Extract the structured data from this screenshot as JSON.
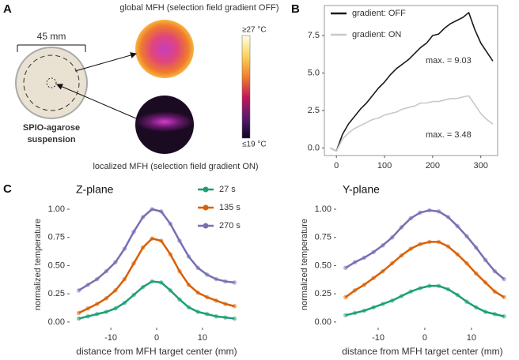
{
  "panel_labels": [
    "A",
    "B",
    "C"
  ],
  "panel_a": {
    "scale_label": "45 mm",
    "sample_label": [
      "SPIO-agarose",
      "suspension"
    ],
    "top_image_caption": "global MFH (selection field gradient OFF)",
    "bottom_image_caption": "localized MFH (selection field gradient ON)",
    "colorbar_max_label": "≥27 °C",
    "colorbar_min_label": "≤19 °C"
  },
  "chart_data": [
    {
      "type": "line",
      "frame": true,
      "legend": "top-left",
      "x": [
        -12.5,
        0,
        12.5,
        25,
        37.5,
        50,
        62.5,
        75,
        87.5,
        100,
        112.5,
        125,
        137.5,
        150,
        162.5,
        175,
        187.5,
        200,
        212.5,
        225,
        237.5,
        250,
        262.5,
        275,
        287.5,
        300,
        312.5,
        325
      ],
      "series": [
        {
          "name": "gradient: OFF",
          "color": "#1a1a1a",
          "values": [
            0,
            -0.2,
            0.9,
            1.6,
            2.1,
            2.6,
            3.0,
            3.5,
            4.0,
            4.4,
            4.9,
            5.3,
            5.6,
            5.9,
            6.3,
            6.7,
            7.0,
            7.5,
            7.6,
            8.0,
            8.3,
            8.5,
            8.7,
            9.03,
            7.9,
            7.0,
            6.4,
            5.8
          ]
        },
        {
          "name": "gradient: ON",
          "color": "#c8c8c8",
          "values": [
            0,
            -0.2,
            0.6,
            1.0,
            1.3,
            1.5,
            1.7,
            1.9,
            2.0,
            2.2,
            2.3,
            2.4,
            2.6,
            2.7,
            2.8,
            3.0,
            3.0,
            3.1,
            3.1,
            3.2,
            3.3,
            3.3,
            3.4,
            3.48,
            2.9,
            2.3,
            1.9,
            1.6
          ]
        }
      ],
      "annotations": [
        "max. = 9.03",
        "max. = 3.48"
      ],
      "xlim": [
        -25,
        335
      ],
      "ylim": [
        -0.5,
        9.5
      ],
      "xticks": [
        0,
        100,
        200,
        300
      ],
      "yticks": [
        {
          "value": 0,
          "label": "0.0"
        },
        2.5,
        {
          "value": 5,
          "label": "5.0"
        },
        7.5
      ]
    },
    {
      "type": "line",
      "markers": true,
      "title": "Z-plane",
      "legend": "top-right",
      "x_label": "distance from MFH target center (mm)",
      "y_label": "normalized temperature",
      "x": [
        -17,
        -15,
        -13,
        -11,
        -9,
        -7,
        -5,
        -3,
        -1,
        1,
        3,
        5,
        7,
        9,
        11,
        13,
        15,
        17
      ],
      "series": [
        {
          "name": "27 s",
          "color": "#1b9e77",
          "values": [
            0.03,
            0.05,
            0.07,
            0.09,
            0.12,
            0.17,
            0.24,
            0.31,
            0.36,
            0.35,
            0.28,
            0.2,
            0.13,
            0.09,
            0.07,
            0.05,
            0.04,
            0.03
          ]
        },
        {
          "name": "135 s",
          "color": "#d95f02",
          "values": [
            0.08,
            0.12,
            0.16,
            0.21,
            0.28,
            0.38,
            0.52,
            0.66,
            0.74,
            0.72,
            0.6,
            0.45,
            0.33,
            0.26,
            0.22,
            0.19,
            0.16,
            0.14
          ]
        },
        {
          "name": "270 s",
          "color": "#7570b3",
          "values": [
            0.28,
            0.33,
            0.38,
            0.45,
            0.53,
            0.65,
            0.8,
            0.93,
            1.0,
            0.98,
            0.87,
            0.72,
            0.58,
            0.48,
            0.42,
            0.38,
            0.36,
            0.35
          ]
        }
      ],
      "xlim": [
        -19,
        19
      ],
      "ylim": [
        -0.05,
        1.07
      ],
      "xticks": [
        -10,
        0,
        10
      ],
      "yticks": [
        {
          "value": 0,
          "label": "0.00"
        },
        0.25,
        {
          "value": 0.5,
          "label": "0.50"
        },
        0.75,
        {
          "value": 1,
          "label": "1.00"
        }
      ]
    },
    {
      "type": "line",
      "markers": true,
      "title": "Y-plane",
      "x_label": "distance from MFH target center (mm)",
      "y_label": "normalized temperature",
      "x": [
        -17,
        -15,
        -13,
        -11,
        -9,
        -7,
        -5,
        -3,
        -1,
        1,
        3,
        5,
        7,
        9,
        11,
        13,
        15,
        17
      ],
      "series": [
        {
          "color": "#1b9e77",
          "values": [
            0.06,
            0.08,
            0.1,
            0.13,
            0.16,
            0.19,
            0.23,
            0.27,
            0.3,
            0.32,
            0.32,
            0.29,
            0.24,
            0.18,
            0.13,
            0.09,
            0.07,
            0.05
          ]
        },
        {
          "color": "#d95f02",
          "values": [
            0.22,
            0.28,
            0.33,
            0.39,
            0.45,
            0.52,
            0.59,
            0.65,
            0.69,
            0.71,
            0.71,
            0.67,
            0.6,
            0.52,
            0.43,
            0.35,
            0.27,
            0.22
          ]
        },
        {
          "color": "#7570b3",
          "values": [
            0.48,
            0.53,
            0.57,
            0.62,
            0.68,
            0.75,
            0.84,
            0.92,
            0.97,
            0.99,
            0.98,
            0.93,
            0.85,
            0.76,
            0.66,
            0.55,
            0.45,
            0.38
          ]
        }
      ],
      "xlim": [
        -19,
        18
      ],
      "ylim": [
        -0.05,
        1.07
      ],
      "xticks": [
        -10,
        0,
        10
      ],
      "yticks": [
        {
          "value": 0,
          "label": "0.00"
        },
        0.25,
        {
          "value": 0.5,
          "label": "0.50"
        },
        0.75,
        {
          "value": 1,
          "label": "1.00"
        }
      ]
    }
  ]
}
